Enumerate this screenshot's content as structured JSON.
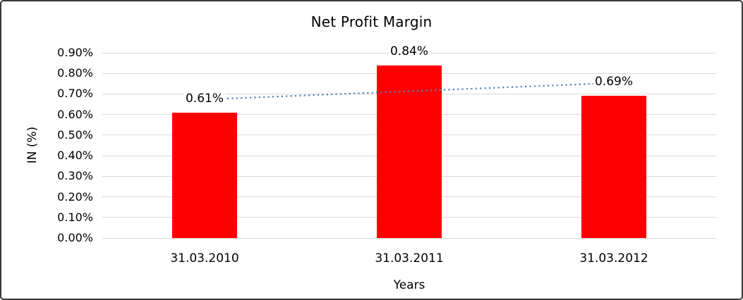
{
  "chart_data": {
    "type": "bar",
    "title": "Net Profit Margin",
    "xlabel": "Years",
    "ylabel": "IN (%)",
    "categories": [
      "31.03.2010",
      "31.03.2011",
      "31.03.2012"
    ],
    "values": [
      0.61,
      0.84,
      0.69
    ],
    "value_labels": [
      "0.61%",
      "0.84%",
      "0.69%"
    ],
    "ylim": [
      0,
      0.9
    ],
    "ytick_step": 0.1,
    "ytick_labels": [
      "0.00%",
      "0.10%",
      "0.20%",
      "0.30%",
      "0.40%",
      "0.50%",
      "0.60%",
      "0.70%",
      "0.80%",
      "0.90%"
    ],
    "grid": true,
    "legend_position": "none",
    "bar_color": "#ff0000",
    "gridline_color": "#d9d9d9",
    "text_color": "#000000",
    "trendline": {
      "type": "linear",
      "style": "dotted",
      "color": "#4f81bd",
      "start_value": 0.6733,
      "end_value": 0.7533
    }
  }
}
